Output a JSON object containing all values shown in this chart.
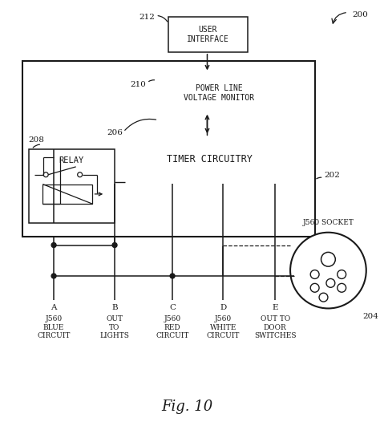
{
  "bg_color": "#ffffff",
  "line_color": "#1a1a1a",
  "fig_width": 4.74,
  "fig_height": 5.41,
  "dpi": 100,
  "labels": {
    "fig_label": "Fig. 10",
    "user_interface": "USER\nINTERFACE",
    "power_line": "POWER LINE\nVOLTAGE MONITOR",
    "timer_circuitry": "TIMER CIRCUITRY",
    "relay": "RELAY",
    "j560_socket": "J560 SOCKET",
    "ref_200": "200",
    "ref_202": "202",
    "ref_204": "204",
    "ref_206": "206",
    "ref_208": "208",
    "ref_210": "210",
    "ref_212": "212",
    "col_A": "A",
    "col_B": "B",
    "col_C": "C",
    "col_D": "D",
    "col_E": "E",
    "label_A": "J560\nBLUE\nCIRCUIT",
    "label_B": "OUT\nTO\nLIGHTS",
    "label_C": "J560\nRED\nCIRCUIT",
    "label_D": "J560\nWHITE\nCIRCUIT",
    "label_E": "OUT TO\nDOOR\nSWITCHES"
  }
}
